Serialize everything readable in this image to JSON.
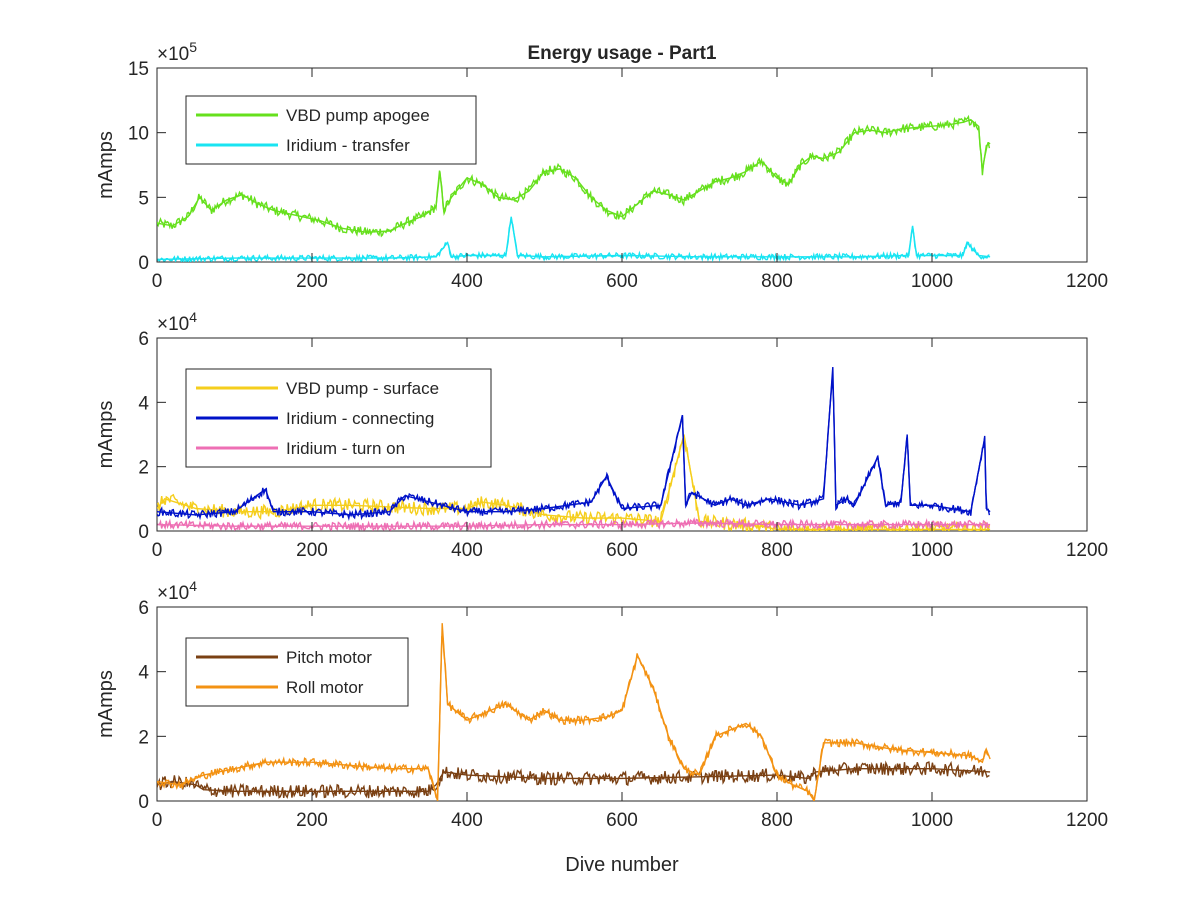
{
  "chart_data": [
    {
      "type": "line",
      "title": "Energy usage - Part1",
      "xlabel": "",
      "ylabel": "mAmps",
      "y_exponent": "×10^5",
      "y_exponent_base": "×10",
      "y_exponent_power": "5",
      "xlim": [
        0,
        1200
      ],
      "ylim": [
        0,
        15
      ],
      "xticks": [
        "0",
        "200",
        "400",
        "600",
        "800",
        "1000",
        "1200"
      ],
      "yticks": [
        "0",
        "5",
        "10",
        "15"
      ],
      "legend_position": "top-left",
      "grid": false,
      "series": [
        {
          "name": "VBD pump apogee",
          "color": "#66e01d",
          "x": [
            0,
            20,
            40,
            55,
            70,
            90,
            110,
            130,
            150,
            180,
            210,
            240,
            270,
            300,
            320,
            345,
            360,
            365,
            370,
            380,
            400,
            420,
            440,
            460,
            480,
            500,
            520,
            540,
            560,
            580,
            600,
            620,
            640,
            660,
            680,
            700,
            720,
            740,
            760,
            780,
            800,
            815,
            830,
            845,
            860,
            880,
            900,
            920,
            940,
            960,
            980,
            1000,
            1020,
            1040,
            1050,
            1060,
            1065,
            1070,
            1075
          ],
          "y": [
            3.0,
            2.8,
            3.5,
            5.0,
            4.0,
            4.8,
            5.2,
            4.5,
            4.0,
            3.6,
            3.2,
            2.6,
            2.3,
            2.4,
            3.0,
            3.6,
            4.3,
            7.0,
            4.0,
            5.0,
            6.5,
            6.0,
            5.0,
            4.8,
            5.5,
            7.0,
            7.2,
            6.5,
            5.0,
            4.0,
            3.5,
            4.5,
            5.5,
            5.2,
            4.8,
            5.5,
            6.2,
            6.5,
            7.0,
            7.8,
            6.5,
            6.0,
            7.5,
            8.2,
            8.0,
            8.5,
            10.0,
            10.2,
            10.0,
            10.3,
            10.4,
            10.5,
            10.6,
            10.8,
            11.0,
            10.5,
            7.0,
            9.0,
            9.2
          ]
        },
        {
          "name": "Iridium - transfer",
          "color": "#19e4f2",
          "x": [
            0,
            100,
            200,
            300,
            360,
            375,
            380,
            400,
            450,
            457,
            465,
            500,
            600,
            700,
            800,
            900,
            970,
            975,
            980,
            1000,
            1040,
            1045,
            1060,
            1075
          ],
          "y": [
            0.2,
            0.3,
            0.3,
            0.3,
            0.4,
            1.5,
            0.4,
            0.5,
            0.5,
            3.5,
            0.5,
            0.4,
            0.5,
            0.4,
            0.4,
            0.4,
            0.5,
            2.8,
            0.5,
            0.5,
            0.5,
            1.5,
            0.5,
            0.4
          ]
        }
      ]
    },
    {
      "type": "line",
      "title": "",
      "xlabel": "",
      "ylabel": "mAmps",
      "y_exponent": "×10^4",
      "y_exponent_base": "×10",
      "y_exponent_power": "4",
      "xlim": [
        0,
        1200
      ],
      "ylim": [
        0,
        6
      ],
      "xticks": [
        "0",
        "200",
        "400",
        "600",
        "800",
        "1000",
        "1200"
      ],
      "yticks": [
        "0",
        "2",
        "4",
        "6"
      ],
      "legend_position": "top-left",
      "grid": false,
      "series": [
        {
          "name": "VBD pump - surface",
          "color": "#f5ce1c",
          "x": [
            0,
            10,
            50,
            100,
            150,
            200,
            250,
            300,
            350,
            380,
            400,
            420,
            450,
            500,
            550,
            600,
            650,
            680,
            700,
            750,
            780,
            800,
            850,
            900,
            950,
            1000,
            1050,
            1075
          ],
          "y": [
            0.7,
            1.0,
            0.7,
            0.6,
            0.6,
            0.8,
            0.8,
            0.75,
            0.7,
            0.7,
            0.7,
            0.9,
            0.8,
            0.5,
            0.4,
            0.4,
            0.3,
            3.0,
            0.3,
            0.2,
            0.15,
            0.05,
            0.05,
            0.05,
            0.05,
            0.05,
            0.05,
            0.05
          ]
        },
        {
          "name": "Iridium - connecting",
          "color": "#0012c8",
          "x": [
            0,
            50,
            100,
            140,
            150,
            200,
            250,
            300,
            320,
            400,
            450,
            500,
            560,
            580,
            600,
            650,
            678,
            682,
            690,
            720,
            740,
            760,
            790,
            830,
            860,
            872,
            876,
            890,
            900,
            930,
            940,
            960,
            968,
            972,
            1000,
            1050,
            1068,
            1070,
            1075
          ],
          "y": [
            0.6,
            0.5,
            0.6,
            1.3,
            0.6,
            0.6,
            0.5,
            0.6,
            1.1,
            0.6,
            0.6,
            0.7,
            0.9,
            1.7,
            0.7,
            0.8,
            3.6,
            0.8,
            1.2,
            0.8,
            1.0,
            0.8,
            1.0,
            0.8,
            1.0,
            5.1,
            0.8,
            1.0,
            0.8,
            2.3,
            0.8,
            0.9,
            3.0,
            0.8,
            0.8,
            0.6,
            2.9,
            0.7,
            0.6
          ]
        },
        {
          "name": "Iridium - turn on",
          "color": "#ee6fb4",
          "x": [
            0,
            100,
            200,
            300,
            400,
            500,
            600,
            700,
            800,
            900,
            1000,
            1075
          ],
          "y": [
            0.2,
            0.15,
            0.15,
            0.15,
            0.15,
            0.2,
            0.2,
            0.25,
            0.2,
            0.2,
            0.2,
            0.2
          ]
        }
      ]
    },
    {
      "type": "line",
      "title": "",
      "xlabel": "Dive number",
      "ylabel": "mAmps",
      "y_exponent": "×10^4",
      "y_exponent_base": "×10",
      "y_exponent_power": "4",
      "xlim": [
        0,
        1200
      ],
      "ylim": [
        0,
        6
      ],
      "xticks": [
        "0",
        "200",
        "400",
        "600",
        "800",
        "1000",
        "1200"
      ],
      "yticks": [
        "0",
        "2",
        "4",
        "6"
      ],
      "legend_position": "top-left",
      "grid": false,
      "series": [
        {
          "name": "Pitch motor",
          "color": "#7a4013",
          "x": [
            0,
            20,
            50,
            60,
            100,
            200,
            300,
            350,
            360,
            370,
            400,
            500,
            600,
            700,
            800,
            840,
            850,
            900,
            1000,
            1075
          ],
          "y": [
            0.5,
            0.6,
            0.5,
            0.35,
            0.3,
            0.3,
            0.3,
            0.3,
            0.5,
            0.9,
            0.8,
            0.7,
            0.7,
            0.75,
            0.8,
            0.7,
            0.9,
            1.0,
            1.0,
            0.9
          ]
        },
        {
          "name": "Roll motor",
          "color": "#f39213",
          "x": [
            0,
            30,
            60,
            100,
            140,
            200,
            250,
            300,
            350,
            362,
            368,
            375,
            400,
            430,
            450,
            480,
            500,
            520,
            550,
            580,
            600,
            620,
            640,
            660,
            680,
            700,
            720,
            760,
            780,
            800,
            820,
            840,
            848,
            860,
            900,
            950,
            1000,
            1050,
            1065,
            1070,
            1075
          ],
          "y": [
            0.6,
            0.5,
            0.8,
            1.0,
            1.2,
            1.2,
            1.1,
            1.0,
            1.0,
            0.0,
            5.5,
            3.0,
            2.5,
            2.8,
            3.0,
            2.5,
            2.8,
            2.5,
            2.5,
            2.6,
            2.8,
            4.5,
            3.5,
            2.0,
            1.0,
            0.8,
            2.0,
            2.4,
            2.0,
            0.8,
            0.5,
            0.3,
            0.0,
            1.8,
            1.8,
            1.6,
            1.5,
            1.4,
            1.2,
            1.6,
            1.3
          ]
        }
      ]
    }
  ]
}
